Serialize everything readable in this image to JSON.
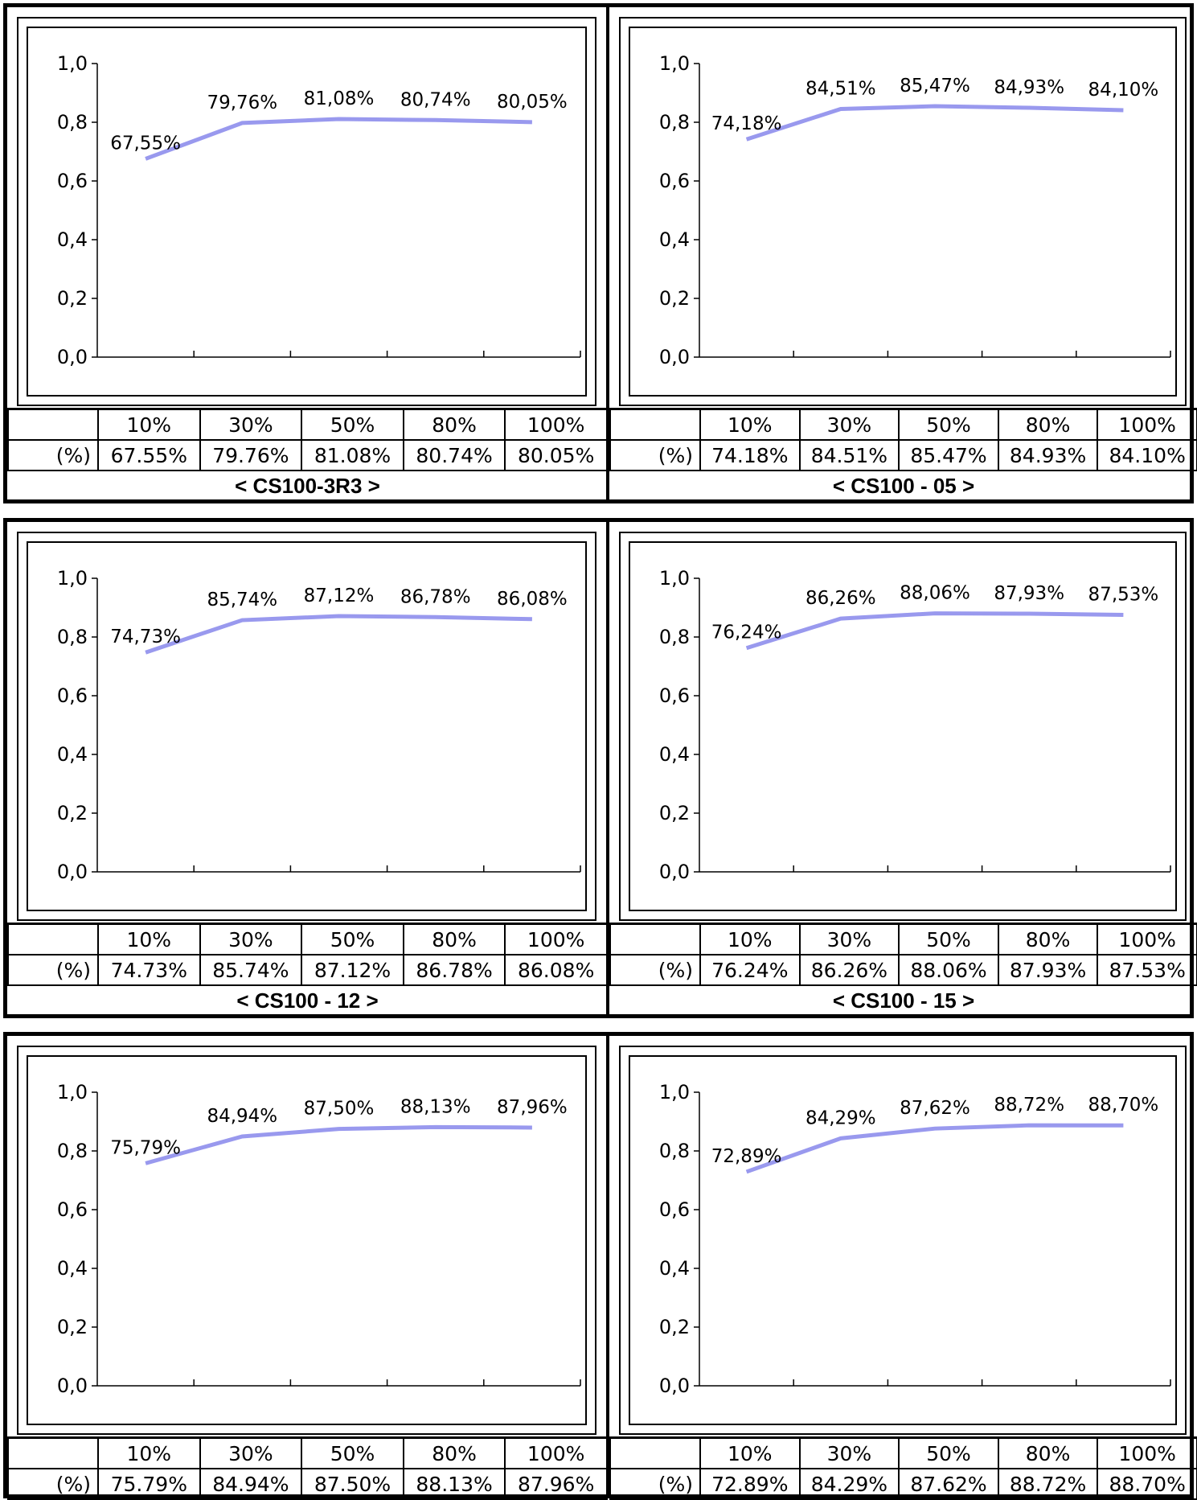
{
  "colors": {
    "line": "#9999ee",
    "border": "#000000",
    "background": "#ffffff"
  },
  "row_header": "(%)",
  "chart_data": [
    {
      "type": "line",
      "caption": "< CS100-3R3 >",
      "categories": [
        "10%",
        "30%",
        "50%",
        "80%",
        "100%"
      ],
      "values": [
        0.6755,
        0.7976,
        0.8108,
        0.8074,
        0.8005
      ],
      "point_labels": [
        "67,55%",
        "79,76%",
        "81,08%",
        "80,74%",
        "80,05%"
      ],
      "table_values": [
        "67.55%",
        "79.76%",
        "81.08%",
        "80.74%",
        "80.05%"
      ],
      "ylim": [
        0,
        1.0
      ],
      "y_ticks": [
        "0,0",
        "0,2",
        "0,4",
        "0,6",
        "0,8",
        "1,0"
      ],
      "grid": false,
      "xlabel": "",
      "ylabel": ""
    },
    {
      "type": "line",
      "caption": "< CS100 - 05 >",
      "categories": [
        "10%",
        "30%",
        "50%",
        "80%",
        "100%"
      ],
      "values": [
        0.7418,
        0.8451,
        0.8547,
        0.8493,
        0.841
      ],
      "point_labels": [
        "74,18%",
        "84,51%",
        "85,47%",
        "84,93%",
        "84,10%"
      ],
      "table_values": [
        "74.18%",
        "84.51%",
        "85.47%",
        "84.93%",
        "84.10%"
      ],
      "ylim": [
        0,
        1.0
      ],
      "y_ticks": [
        "0,0",
        "0,2",
        "0,4",
        "0,6",
        "0,8",
        "1,0"
      ],
      "grid": false,
      "xlabel": "",
      "ylabel": ""
    },
    {
      "type": "line",
      "caption": "< CS100 - 12 >",
      "categories": [
        "10%",
        "30%",
        "50%",
        "80%",
        "100%"
      ],
      "values": [
        0.7473,
        0.8574,
        0.8712,
        0.8678,
        0.8608
      ],
      "point_labels": [
        "74,73%",
        "85,74%",
        "87,12%",
        "86,78%",
        "86,08%"
      ],
      "table_values": [
        "74.73%",
        "85.74%",
        "87.12%",
        "86.78%",
        "86.08%"
      ],
      "ylim": [
        0,
        1.0
      ],
      "y_ticks": [
        "0,0",
        "0,2",
        "0,4",
        "0,6",
        "0,8",
        "1,0"
      ],
      "grid": false,
      "xlabel": "",
      "ylabel": ""
    },
    {
      "type": "line",
      "caption": "< CS100 - 15 >",
      "categories": [
        "10%",
        "30%",
        "50%",
        "80%",
        "100%"
      ],
      "values": [
        0.7624,
        0.8626,
        0.8806,
        0.8793,
        0.8753
      ],
      "point_labels": [
        "76,24%",
        "86,26%",
        "88,06%",
        "87,93%",
        "87,53%"
      ],
      "table_values": [
        "76.24%",
        "86.26%",
        "88.06%",
        "87.93%",
        "87.53%"
      ],
      "ylim": [
        0,
        1.0
      ],
      "y_ticks": [
        "0,0",
        "0,2",
        "0,4",
        "0,6",
        "0,8",
        "1,0"
      ],
      "grid": false,
      "xlabel": "",
      "ylabel": ""
    },
    {
      "type": "line",
      "caption": "",
      "categories": [
        "10%",
        "30%",
        "50%",
        "80%",
        "100%"
      ],
      "values": [
        0.7579,
        0.8494,
        0.875,
        0.8813,
        0.8796
      ],
      "point_labels": [
        "75,79%",
        "84,94%",
        "87,50%",
        "88,13%",
        "87,96%"
      ],
      "table_values": [
        "75.79%",
        "84.94%",
        "87.50%",
        "88.13%",
        "87.96%"
      ],
      "ylim": [
        0,
        1.0
      ],
      "y_ticks": [
        "0,0",
        "0,2",
        "0,4",
        "0,6",
        "0,8",
        "1,0"
      ],
      "grid": false,
      "xlabel": "",
      "ylabel": ""
    },
    {
      "type": "line",
      "caption": "",
      "categories": [
        "10%",
        "30%",
        "50%",
        "80%",
        "100%"
      ],
      "values": [
        0.7289,
        0.8429,
        0.8762,
        0.8872,
        0.887
      ],
      "point_labels": [
        "72,89%",
        "84,29%",
        "87,62%",
        "88,72%",
        "88,70%"
      ],
      "table_values": [
        "72.89%",
        "84.29%",
        "87.62%",
        "88.72%",
        "88.70%"
      ],
      "ylim": [
        0,
        1.0
      ],
      "y_ticks": [
        "0,0",
        "0,2",
        "0,4",
        "0,6",
        "0,8",
        "1,0"
      ],
      "grid": false,
      "xlabel": "",
      "ylabel": ""
    }
  ]
}
